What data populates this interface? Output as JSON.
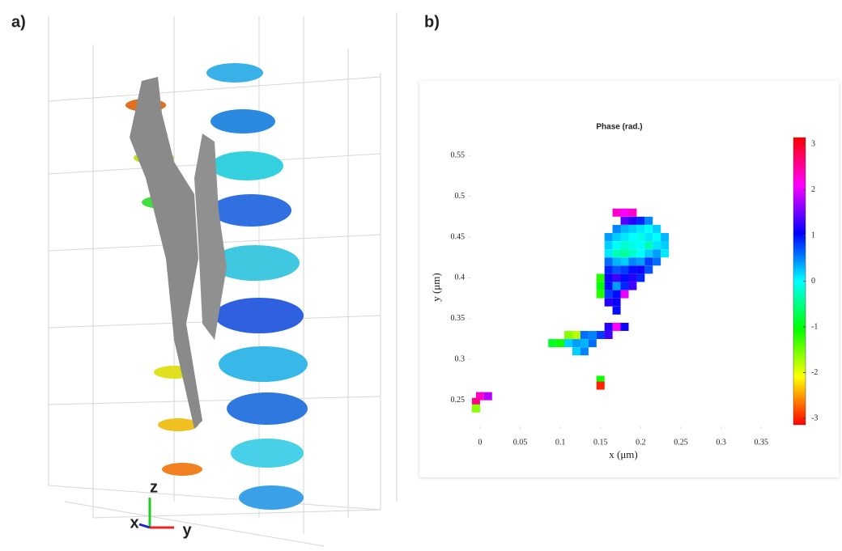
{
  "figure": {
    "labels": [
      "a)",
      "b)"
    ],
    "axis_triad": [
      "z",
      "x",
      "y"
    ]
  },
  "chart_data": {
    "type": "heatmap",
    "title": "Phase (rad.)",
    "xlabel": "x (μm)",
    "ylabel": "y (μm)",
    "xlim": [
      -0.015,
      0.375
    ],
    "ylim": [
      0.215,
      0.57
    ],
    "xticks": [
      0,
      0.05,
      0.1,
      0.15,
      0.2,
      0.25,
      0.3,
      0.35
    ],
    "yticks": [
      0.25,
      0.3,
      0.35,
      0.4,
      0.45,
      0.5,
      0.55
    ],
    "colormap": "hsv",
    "clim": [
      -3.1416,
      3.1416
    ],
    "cticks": [
      -3,
      -2,
      -1,
      0,
      1,
      2,
      3
    ],
    "x": [
      0.17,
      0.18,
      0.19,
      0.18,
      0.19,
      0.2,
      0.21,
      0.17,
      0.18,
      0.19,
      0.2,
      0.21,
      0.22,
      0.16,
      0.17,
      0.18,
      0.19,
      0.2,
      0.21,
      0.22,
      0.23,
      0.16,
      0.17,
      0.18,
      0.19,
      0.2,
      0.21,
      0.22,
      0.23,
      0.16,
      0.17,
      0.18,
      0.19,
      0.2,
      0.21,
      0.22,
      0.23,
      0.16,
      0.17,
      0.18,
      0.19,
      0.2,
      0.21,
      0.22,
      0.16,
      0.17,
      0.18,
      0.19,
      0.2,
      0.21,
      0.15,
      0.16,
      0.17,
      0.18,
      0.19,
      0.2,
      0.15,
      0.16,
      0.17,
      0.18,
      0.19,
      0.15,
      0.16,
      0.17,
      0.18,
      0.16,
      0.17,
      0.17,
      0.16,
      0.17,
      0.18,
      0.11,
      0.12,
      0.13,
      0.14,
      0.15,
      0.16,
      0.09,
      0.1,
      0.11,
      0.12,
      0.13,
      0.14,
      0.12,
      0.13,
      0.15,
      0.15,
      0.0,
      0.01,
      -0.005,
      -0.005
    ],
    "y": [
      0.48,
      0.48,
      0.48,
      0.47,
      0.47,
      0.47,
      0.47,
      0.46,
      0.46,
      0.46,
      0.46,
      0.46,
      0.46,
      0.45,
      0.45,
      0.45,
      0.45,
      0.45,
      0.45,
      0.45,
      0.45,
      0.44,
      0.44,
      0.44,
      0.44,
      0.44,
      0.44,
      0.44,
      0.44,
      0.43,
      0.43,
      0.43,
      0.43,
      0.43,
      0.43,
      0.43,
      0.43,
      0.42,
      0.42,
      0.42,
      0.42,
      0.42,
      0.42,
      0.42,
      0.41,
      0.41,
      0.41,
      0.41,
      0.41,
      0.41,
      0.4,
      0.4,
      0.4,
      0.4,
      0.4,
      0.4,
      0.39,
      0.39,
      0.39,
      0.39,
      0.39,
      0.38,
      0.38,
      0.38,
      0.38,
      0.37,
      0.37,
      0.36,
      0.34,
      0.34,
      0.34,
      0.33,
      0.33,
      0.33,
      0.33,
      0.33,
      0.33,
      0.32,
      0.32,
      0.32,
      0.32,
      0.32,
      0.32,
      0.31,
      0.31,
      0.275,
      0.268,
      0.255,
      0.255,
      0.248,
      0.24
    ],
    "values": [
      2.3,
      2.1,
      2.3,
      1.4,
      1.2,
      0.9,
      0.5,
      0.5,
      0.3,
      0.2,
      0.1,
      0.0,
      0.2,
      0.4,
      0.2,
      0.1,
      0.0,
      -0.1,
      0.1,
      0.0,
      0.3,
      0.2,
      0.0,
      -0.2,
      -0.1,
      0.0,
      -0.3,
      0.1,
      0.2,
      0.1,
      -0.3,
      -0.4,
      -0.2,
      0.0,
      0.2,
      0.4,
      0.1,
      0.6,
      0.3,
      0.2,
      0.5,
      0.4,
      0.8,
      0.6,
      0.9,
      0.7,
      0.8,
      1.0,
      1.1,
      0.7,
      -1.2,
      1.1,
      1.3,
      1.0,
      1.2,
      0.9,
      -1.0,
      1.0,
      0.4,
      0.9,
      1.3,
      -1.2,
      0.8,
      1.0,
      2.0,
      1.2,
      1.1,
      1.0,
      1.2,
      2.1,
      1.1,
      -1.6,
      -1.8,
      0.6,
      0.5,
      0.8,
      1.3,
      -0.9,
      -1.1,
      0.2,
      0.4,
      0.3,
      0.6,
      0.2,
      0.5,
      -1.1,
      -3.0,
      2.3,
      1.8,
      2.6,
      -1.6
    ]
  }
}
